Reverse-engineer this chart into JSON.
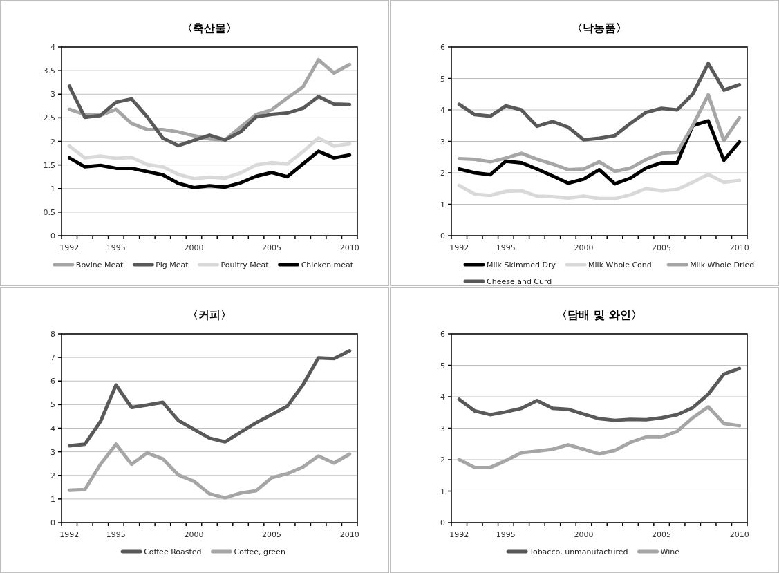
{
  "chart_data": [
    {
      "type": "line",
      "title": "〈축산물〉",
      "categories": [
        "1992",
        null,
        null,
        "1995",
        null,
        null,
        null,
        null,
        "2000",
        null,
        null,
        null,
        null,
        "2005",
        null,
        null,
        null,
        null,
        "2010"
      ],
      "ylim": [
        0,
        4
      ],
      "yticks": [
        0,
        0.5,
        1,
        1.5,
        2,
        2.5,
        3,
        3.5,
        4
      ],
      "grid": "y",
      "legend": "bottom",
      "line_style": "solid",
      "series": [
        {
          "name": "Bovine Meat",
          "color": "#a6a6a6",
          "values": [
            2.68,
            2.57,
            2.55,
            2.68,
            2.38,
            2.25,
            2.25,
            2.2,
            2.12,
            2.05,
            2.03,
            2.3,
            2.57,
            2.67,
            2.92,
            3.15,
            3.73,
            3.45,
            3.63
          ]
        },
        {
          "name": "Pig Meat",
          "color": "#595959",
          "values": [
            3.17,
            2.51,
            2.55,
            2.83,
            2.9,
            2.52,
            2.07,
            1.91,
            2.02,
            2.13,
            2.03,
            2.2,
            2.52,
            2.57,
            2.6,
            2.7,
            2.95,
            2.79,
            2.78
          ]
        },
        {
          "name": "Poultry Meat",
          "color": "#d9d9d9",
          "values": [
            1.9,
            1.65,
            1.69,
            1.64,
            1.66,
            1.51,
            1.46,
            1.3,
            1.21,
            1.24,
            1.22,
            1.33,
            1.5,
            1.55,
            1.52,
            1.78,
            2.07,
            1.9,
            1.95
          ]
        },
        {
          "name": "Chicken meat",
          "color": "#000000",
          "values": [
            1.65,
            1.46,
            1.49,
            1.43,
            1.43,
            1.36,
            1.29,
            1.11,
            1.02,
            1.06,
            1.03,
            1.12,
            1.26,
            1.34,
            1.25,
            1.52,
            1.79,
            1.65,
            1.71
          ]
        }
      ]
    },
    {
      "type": "line",
      "title": "〈낙농품〉",
      "categories": [
        "1992",
        null,
        null,
        "1995",
        null,
        null,
        null,
        null,
        "2000",
        null,
        null,
        null,
        null,
        "2005",
        null,
        null,
        null,
        null,
        "2010"
      ],
      "ylim": [
        0,
        6
      ],
      "yticks": [
        0,
        1,
        2,
        3,
        4,
        5,
        6
      ],
      "grid": "y",
      "legend": "bottom",
      "line_style": "solid",
      "series": [
        {
          "name": "Milk Skimmed Dry",
          "color": "#000000",
          "values": [
            2.12,
            2.0,
            1.94,
            2.37,
            2.32,
            2.12,
            1.9,
            1.67,
            1.8,
            2.1,
            1.65,
            1.83,
            2.15,
            2.32,
            2.32,
            3.5,
            3.65,
            2.4,
            2.98
          ]
        },
        {
          "name": "Milk Whole Cond",
          "color": "#d9d9d9",
          "values": [
            1.6,
            1.32,
            1.28,
            1.41,
            1.43,
            1.26,
            1.24,
            1.2,
            1.26,
            1.18,
            1.18,
            1.3,
            1.5,
            1.43,
            1.47,
            1.7,
            1.95,
            1.7,
            1.76
          ]
        },
        {
          "name": "Milk Whole Dried",
          "color": "#a6a6a6",
          "values": [
            2.45,
            2.43,
            2.35,
            2.47,
            2.62,
            2.43,
            2.28,
            2.1,
            2.12,
            2.35,
            2.05,
            2.15,
            2.42,
            2.62,
            2.65,
            3.5,
            4.48,
            3.02,
            3.75
          ]
        },
        {
          "name": "Cheese and Curd",
          "color": "#595959",
          "values": [
            4.18,
            3.85,
            3.8,
            4.13,
            4.0,
            3.48,
            3.63,
            3.45,
            3.05,
            3.1,
            3.18,
            3.57,
            3.92,
            4.05,
            4.0,
            4.5,
            5.48,
            4.63,
            4.8
          ]
        }
      ]
    },
    {
      "type": "line",
      "title": "〈커피〉",
      "categories": [
        "1992",
        null,
        null,
        "1995",
        null,
        null,
        null,
        null,
        "2000",
        null,
        null,
        null,
        null,
        "2005",
        null,
        null,
        null,
        null,
        "2010"
      ],
      "ylim": [
        0,
        8
      ],
      "yticks": [
        0,
        1,
        2,
        3,
        4,
        5,
        6,
        7,
        8
      ],
      "grid": "y",
      "legend": "bottom",
      "line_style": "solid",
      "series": [
        {
          "name": "Coffee Roasted",
          "color": "#595959",
          "values": [
            3.25,
            3.32,
            4.28,
            5.83,
            4.88,
            4.98,
            5.1,
            4.33,
            3.95,
            3.58,
            3.42,
            3.83,
            4.23,
            4.58,
            4.93,
            5.83,
            6.98,
            6.95,
            7.28
          ]
        },
        {
          "name": "Coffee, green",
          "color": "#a6a6a6",
          "values": [
            1.37,
            1.4,
            2.47,
            3.32,
            2.47,
            2.95,
            2.7,
            2.02,
            1.75,
            1.22,
            1.05,
            1.25,
            1.35,
            1.9,
            2.07,
            2.35,
            2.82,
            2.52,
            2.9
          ]
        }
      ]
    },
    {
      "type": "line",
      "title": "〈담배 및 와인〉",
      "categories": [
        "1992",
        null,
        null,
        "1995",
        null,
        null,
        null,
        null,
        "2000",
        null,
        null,
        null,
        null,
        "2005",
        null,
        null,
        null,
        null,
        "2010"
      ],
      "ylim": [
        0,
        6
      ],
      "yticks": [
        0,
        1,
        2,
        3,
        4,
        5,
        6
      ],
      "grid": "y",
      "legend": "bottom",
      "line_style": "solid",
      "series": [
        {
          "name": "Tobacco, unmanufactured",
          "color": "#595959",
          "values": [
            3.92,
            3.55,
            3.43,
            3.52,
            3.63,
            3.88,
            3.63,
            3.6,
            3.45,
            3.3,
            3.25,
            3.28,
            3.27,
            3.33,
            3.43,
            3.65,
            4.08,
            4.72,
            4.9
          ]
        },
        {
          "name": "Wine",
          "color": "#a6a6a6",
          "values": [
            2.0,
            1.75,
            1.75,
            1.97,
            2.22,
            2.27,
            2.33,
            2.47,
            2.33,
            2.18,
            2.29,
            2.55,
            2.72,
            2.72,
            2.9,
            3.33,
            3.68,
            3.15,
            3.08
          ]
        }
      ]
    }
  ]
}
